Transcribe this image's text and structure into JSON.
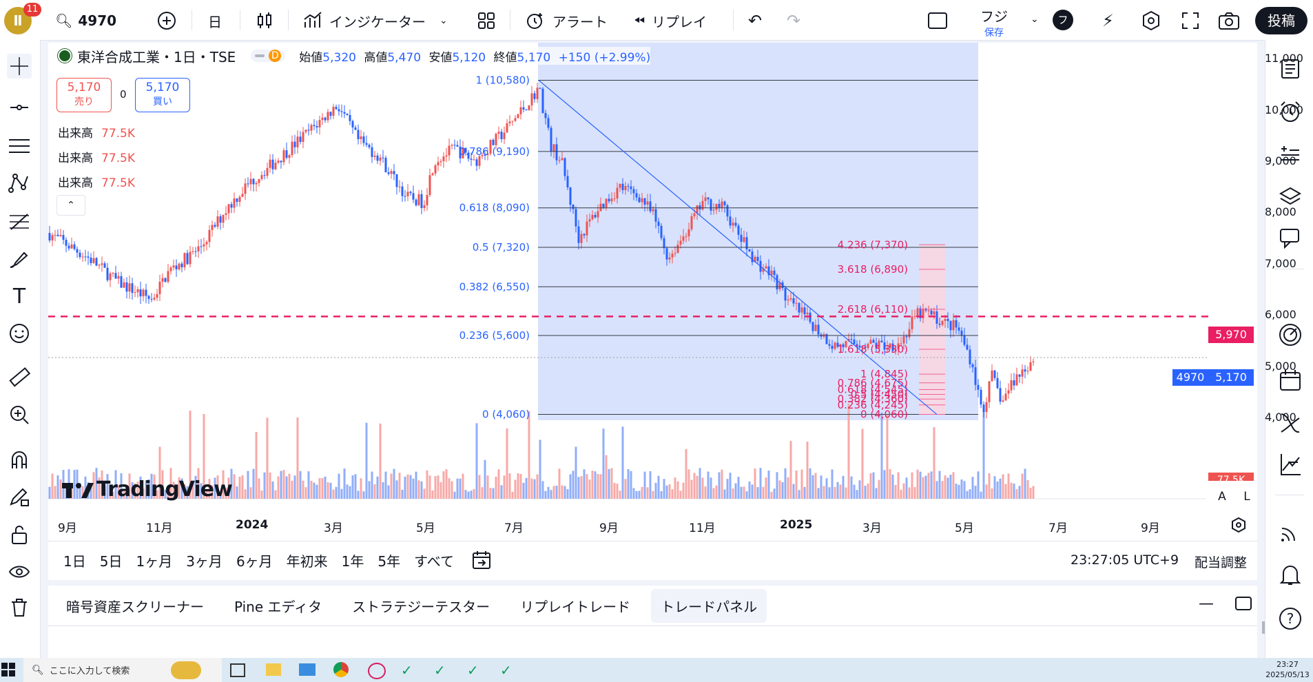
{
  "topbar": {
    "notification_count": "11",
    "symbol": "4970",
    "interval": "日",
    "indicators": "インジケーター",
    "alert": "アラート",
    "replay": "リプレイ",
    "layout_name": "フジ",
    "layout_status": "保存",
    "avatar_letter": "フ",
    "publish": "投稿"
  },
  "legend": {
    "title": "東洋合成工業・1日・TSE",
    "badge": "D",
    "open_label": "始値",
    "open": "5,320",
    "high_label": "高値",
    "high": "5,470",
    "low_label": "安値",
    "low": "5,120",
    "close_label": "終値",
    "close": "5,170",
    "change": "+150 (+2.99%)",
    "sell_price": "5,170",
    "sell_label": "売り",
    "spread": "0",
    "buy_price": "5,170",
    "buy_label": "買い",
    "volume_rows": [
      {
        "label": "出来高",
        "value": "77.5K"
      },
      {
        "label": "出来高",
        "value": "77.5K"
      },
      {
        "label": "出来高",
        "value": "77.5K"
      }
    ]
  },
  "price_axis": [
    "11,000",
    "10,000",
    "9,000",
    "8,000",
    "7,000",
    "6,000",
    "5,000",
    "4,000"
  ],
  "price_tags": {
    "hline": "5,970",
    "symbol": "4970",
    "last": "5,170",
    "volume": "77.5K"
  },
  "axis_buttons": {
    "auto": "A",
    "log": "L"
  },
  "time_axis": [
    "9月",
    "11月",
    "2024",
    "3月",
    "5月",
    "7月",
    "9月",
    "11月",
    "2025",
    "3月",
    "5月",
    "7月",
    "9月"
  ],
  "fib_retracement": [
    {
      "level": "1 (10,580)",
      "price": 10580
    },
    {
      "level": "0.786 (9,190)",
      "price": 9190
    },
    {
      "level": "0.618 (8,090)",
      "price": 8090
    },
    {
      "level": "0.5 (7,320)",
      "price": 7320
    },
    {
      "level": "0.382 (6,550)",
      "price": 6550
    },
    {
      "level": "0.236 (5,600)",
      "price": 5600
    },
    {
      "level": "0 (4,060)",
      "price": 4060
    }
  ],
  "fib_extension": [
    {
      "level": "4.236 (7,370)",
      "price": 7370
    },
    {
      "level": "3.618 (6,890)",
      "price": 6890
    },
    {
      "level": "2.618 (6,110)",
      "price": 6110
    },
    {
      "level": "1.618 (5,330)",
      "price": 5330
    },
    {
      "level": "1 (4,845)",
      "price": 4845
    },
    {
      "level": "0.786 (4,675)",
      "price": 4675
    },
    {
      "level": "0.618 (4,545)",
      "price": 4545
    },
    {
      "level": "0.5 (4,450)",
      "price": 4450
    },
    {
      "level": "0.382 (4,360)",
      "price": 4360
    },
    {
      "level": "0.236 (4,245)",
      "price": 4245
    },
    {
      "level": "0 (4,060)",
      "price": 4060
    }
  ],
  "watermark": "TradingView",
  "bottombar": {
    "ranges": [
      "1日",
      "5日",
      "1ヶ月",
      "3ヶ月",
      "6ヶ月",
      "年初来",
      "1年",
      "5年",
      "すべて"
    ],
    "clock": "23:27:05 UTC+9",
    "adjust": "配当調整"
  },
  "panel_tabs": [
    "暗号資産スクリーナー",
    "Pine エディタ",
    "ストラテジーテスター",
    "リプレイトレード",
    "トレードパネル"
  ],
  "taskbar": {
    "search_placeholder": "ここに入力して検索",
    "time": "23:27",
    "date": "2025/05/13"
  },
  "colors": {
    "up": "#ef5350",
    "down": "#2962ff",
    "accent": "#2962ff",
    "hline": "#e91e63",
    "fibzone": "#d6e0fc",
    "extzone": "#f8d7e1"
  }
}
